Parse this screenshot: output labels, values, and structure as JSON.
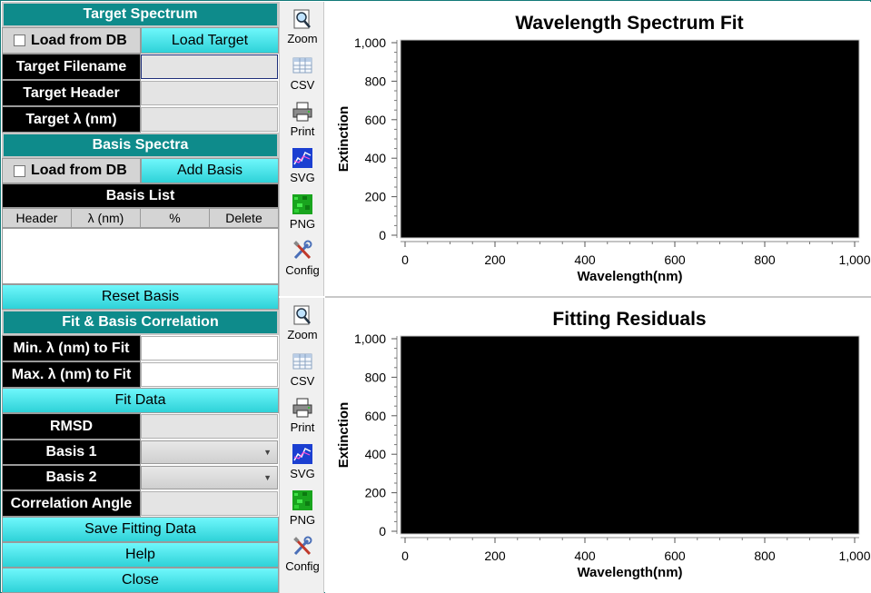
{
  "target_spectrum": {
    "header": "Target Spectrum",
    "load_from_db": "Load from DB",
    "load_target": "Load Target",
    "filename_label": "Target Filename",
    "header_label": "Target Header",
    "lambda_label": "Target λ (nm)"
  },
  "basis_spectra": {
    "header": "Basis Spectra",
    "load_from_db": "Load from DB",
    "add_basis": "Add Basis",
    "list_title": "Basis List",
    "columns": [
      "Header",
      "λ (nm)",
      "%",
      "Delete"
    ],
    "reset": "Reset Basis"
  },
  "fit": {
    "header": "Fit & Basis Correlation",
    "min_label": "Min. λ (nm) to Fit",
    "max_label": "Max. λ (nm) to Fit",
    "fit_button": "Fit Data",
    "rmsd_label": "RMSD",
    "basis1_label": "Basis 1",
    "basis2_label": "Basis 2",
    "angle_label": "Correlation Angle",
    "save": "Save Fitting Data",
    "help": "Help",
    "close": "Close",
    "dropdown_arrow": "▼"
  },
  "toolbar": {
    "items": [
      {
        "label": "Zoom",
        "icon": "zoom-icon"
      },
      {
        "label": "CSV",
        "icon": "csv-icon"
      },
      {
        "label": "Print",
        "icon": "print-icon"
      },
      {
        "label": "SVG",
        "icon": "svg-icon"
      },
      {
        "label": "PNG",
        "icon": "png-icon"
      },
      {
        "label": "Config",
        "icon": "config-icon"
      }
    ]
  },
  "chart_data": [
    {
      "type": "line",
      "title": "Wavelength Spectrum Fit",
      "xlabel": "Wavelength(nm)",
      "ylabel": "Extinction",
      "xlim": [
        0,
        1000
      ],
      "ylim": [
        0,
        1000
      ],
      "xticks": [
        "0",
        "200",
        "400",
        "600",
        "800",
        "1,000"
      ],
      "yticks": [
        "0",
        "200",
        "400",
        "600",
        "800",
        "1,000"
      ],
      "plot_background": "#000000",
      "series": []
    },
    {
      "type": "line",
      "title": "Fitting Residuals",
      "xlabel": "Wavelength(nm)",
      "ylabel": "Extinction",
      "xlim": [
        0,
        1000
      ],
      "ylim": [
        0,
        1000
      ],
      "xticks": [
        "0",
        "200",
        "400",
        "600",
        "800",
        "1,000"
      ],
      "yticks": [
        "0",
        "200",
        "400",
        "600",
        "800",
        "1,000"
      ],
      "plot_background": "#000000",
      "series": []
    }
  ]
}
